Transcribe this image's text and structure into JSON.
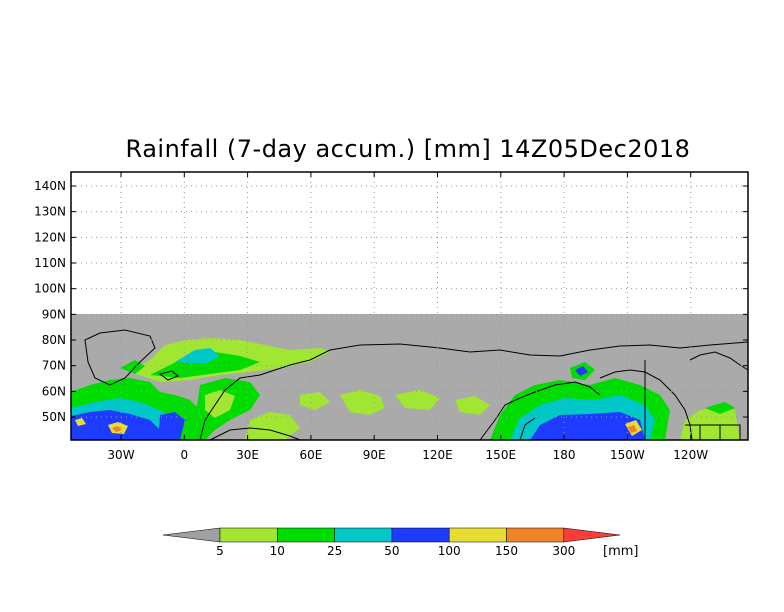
{
  "title": "Rainfall (7-day accum.) [mm] 14Z05Dec2018",
  "map": {
    "lat_labels": [
      "140N",
      "130N",
      "120N",
      "110N",
      "100N",
      "90N",
      "80N",
      "70N",
      "60N",
      "50N"
    ],
    "lon_labels": [
      "30W",
      "0",
      "30E",
      "60E",
      "90E",
      "120E",
      "150E",
      "180",
      "150W",
      "120W"
    ],
    "land_color": "#aaaaaa",
    "background_color": "#ffffff",
    "coast_color": "#000000"
  },
  "legend": {
    "thresholds": [
      "5",
      "10",
      "25",
      "50",
      "100",
      "150",
      "300"
    ],
    "unit": "[mm]",
    "colors": [
      "#a0a0a0",
      "#a0e632",
      "#00dc00",
      "#00c8c8",
      "#1e3cff",
      "#e6dc32",
      "#f08228",
      "#fa3c3c"
    ]
  }
}
